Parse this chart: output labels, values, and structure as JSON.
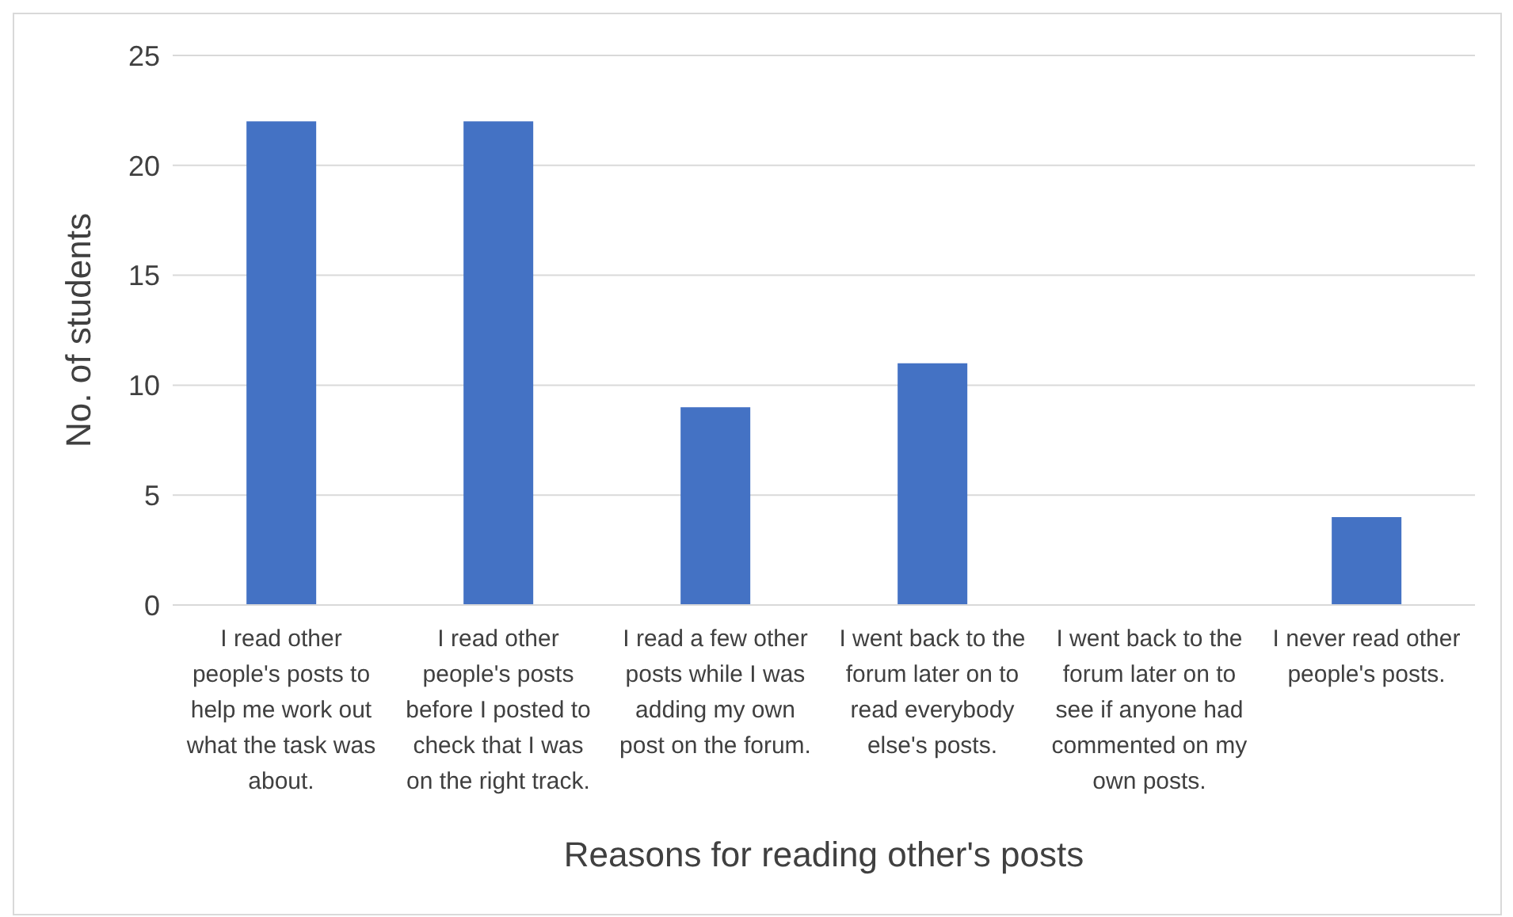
{
  "chart_data": {
    "type": "bar",
    "xlabel": "Reasons for reading other's posts",
    "ylabel": "No. of students",
    "categories": [
      "I read other people's posts to help me work out what the task was about.",
      "I read other people's posts before I posted to check that I was on the right track.",
      "I read a few other posts while I was adding my own post on the forum.",
      "I went back to the forum later on to read everybody else's posts.",
      "I went back to the forum later on to see if anyone had commented on my own posts.",
      "I never read other people's posts."
    ],
    "values": [
      22,
      22,
      9,
      11,
      0,
      4
    ],
    "color": "#4472c4",
    "ylim": [
      0,
      25
    ],
    "yticks": [
      0,
      5,
      10,
      15,
      20,
      25
    ],
    "grid": "y"
  }
}
